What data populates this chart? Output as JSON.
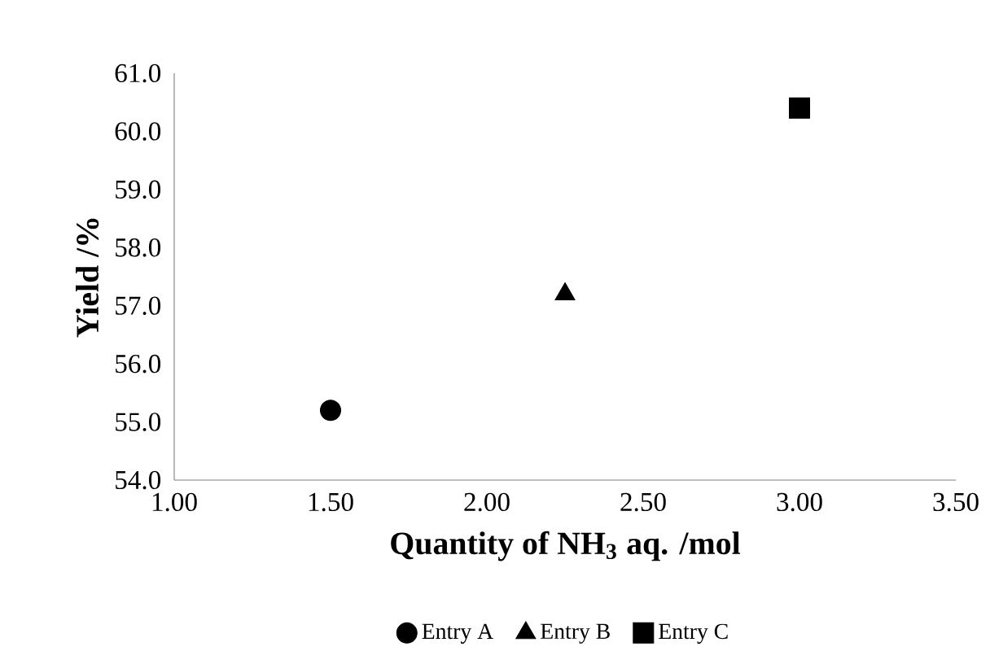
{
  "chart_data": {
    "type": "scatter",
    "xlabel": "Quantity of NH$_{3}$ aq. /mol",
    "ylabel": "Yield /%",
    "xlim": [
      1.0,
      3.5
    ],
    "ylim": [
      54.0,
      61.0
    ],
    "xticks": [
      {
        "value": 1.0,
        "label": "1.00"
      },
      {
        "value": 1.5,
        "label": "1.50"
      },
      {
        "value": 2.0,
        "label": "2.00"
      },
      {
        "value": 2.5,
        "label": "2.50"
      },
      {
        "value": 3.0,
        "label": "3.00"
      },
      {
        "value": 3.5,
        "label": "3.50"
      }
    ],
    "yticks": [
      {
        "value": 54,
        "label": "54.0"
      },
      {
        "value": 55,
        "label": "55.0"
      },
      {
        "value": 56,
        "label": "56.0"
      },
      {
        "value": 57,
        "label": "57.0"
      },
      {
        "value": 58,
        "label": "58.0"
      },
      {
        "value": 59,
        "label": "59.0"
      },
      {
        "value": 60,
        "label": "60.0"
      },
      {
        "value": 61,
        "label": "61.0"
      }
    ],
    "legend": "bottom",
    "grid": false,
    "series": [
      {
        "name": "Entry A",
        "color": "#000000",
        "marker": "circle",
        "x": [
          1.5
        ],
        "values": [
          55.2
        ]
      },
      {
        "name": "Entry B",
        "color": "#000000",
        "marker": "triangle",
        "x": [
          2.25
        ],
        "values": [
          57.2
        ]
      },
      {
        "name": "Entry C",
        "color": "#000000",
        "marker": "square",
        "x": [
          3.0
        ],
        "values": [
          60.4
        ]
      }
    ]
  }
}
